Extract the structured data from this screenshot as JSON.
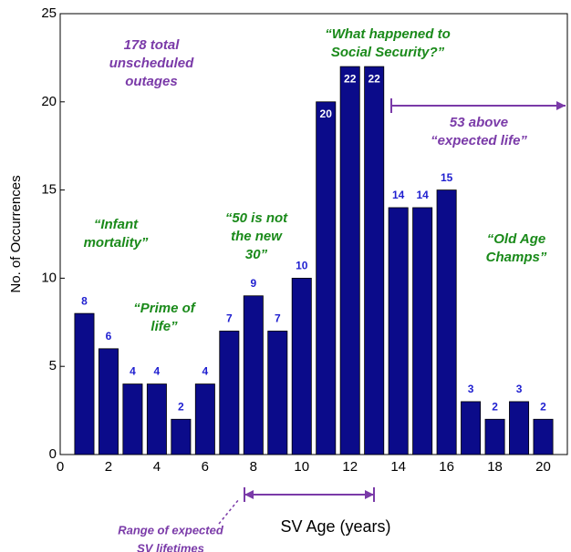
{
  "chart_data": {
    "type": "bar",
    "x": [
      1,
      2,
      3,
      4,
      5,
      6,
      7,
      8,
      9,
      10,
      11,
      12,
      13,
      14,
      15,
      16,
      17,
      18,
      19,
      20
    ],
    "values": [
      8,
      6,
      4,
      4,
      2,
      4,
      7,
      9,
      7,
      10,
      20,
      22,
      22,
      14,
      14,
      15,
      3,
      2,
      3,
      2
    ],
    "color": "#0b0b8a",
    "label_color": "#1f1fd0",
    "xlim": [
      0,
      21
    ],
    "xticks": [
      0,
      2,
      4,
      6,
      8,
      10,
      12,
      14,
      16,
      18,
      20
    ],
    "ylim": [
      0,
      25
    ],
    "yticks": [
      0,
      5,
      10,
      15,
      20,
      25
    ],
    "x_label": "SV Age (years)",
    "y_label": "No. of Occurrences",
    "annotations": [
      {
        "lines": [
          "178 total",
          "unscheduled",
          "outages"
        ],
        "color": "#7a3aa8"
      },
      {
        "lines": [
          "“What happened to",
          "Social Security?”"
        ],
        "color": "#1a8a1a"
      },
      {
        "lines": [
          "53 above",
          "“expected life”"
        ],
        "color": "#7a3aa8"
      },
      {
        "lines": [
          "“Infant",
          "mortality”"
        ],
        "color": "#1a8a1a"
      },
      {
        "lines": [
          "“50 is not",
          "the new",
          "30”"
        ],
        "color": "#1a8a1a"
      },
      {
        "lines": [
          "“Old Age",
          "Champs”"
        ],
        "color": "#1a8a1a"
      },
      {
        "lines": [
          "“Prime of",
          "life”"
        ],
        "color": "#1a8a1a"
      },
      {
        "lines": [
          "Range of expected",
          "SV lifetimes"
        ],
        "color": "#7a3aa8"
      }
    ]
  }
}
